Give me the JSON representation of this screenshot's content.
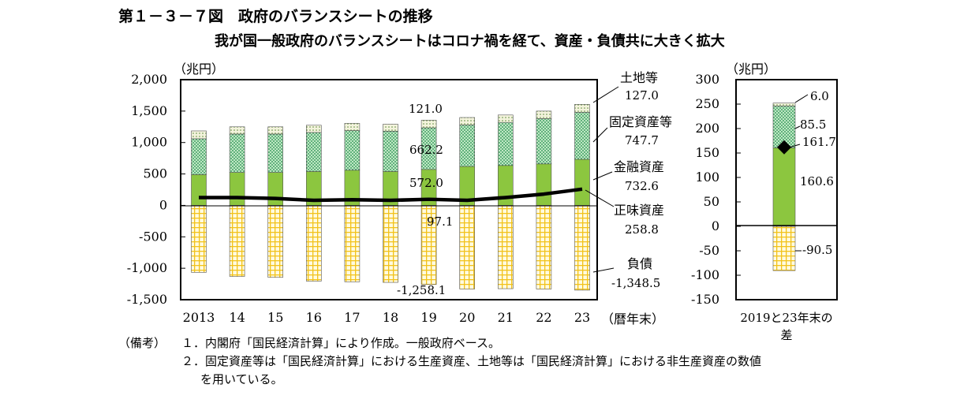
{
  "header": {
    "title": "第１－３－７図　政府のバランスシートの推移",
    "subtitle": "我が国一般政府のバランスシートはコロナ禍を経て、資産・負債共に大きく拡大"
  },
  "notes": {
    "head": "（備考）",
    "items": [
      "１．内閣府「国民経済計算」により作成。一般政府ベース。",
      "２．固定資産等は「国民経済計算」における生産資産、土地等は「国民経済計算」における非生産資産の数値",
      "を用いている。"
    ]
  },
  "colors": {
    "land": "#f3f3dc",
    "fixed": "#bfe8c4",
    "financial": "#8cc63f",
    "liabilities": "#f6d44c",
    "net": "#000000"
  },
  "chart_data": [
    {
      "type": "bar",
      "stacked": true,
      "unit_label": "（兆円）",
      "xlabel": "（暦年末）",
      "ylim": [
        -1500,
        2000
      ],
      "yticks": [
        "2,000",
        "1,500",
        "1,000",
        "500",
        "0",
        "-500",
        "-1,000",
        "-1,500"
      ],
      "categories": [
        "2013",
        "14",
        "15",
        "16",
        "17",
        "18",
        "19",
        "20",
        "21",
        "22",
        "23"
      ],
      "grid": false,
      "legend": "right",
      "series": [
        {
          "name": "金融資産",
          "key": "financial",
          "values": [
            490,
            525,
            525,
            540,
            560,
            540,
            572.0,
            620,
            635,
            660,
            732.6
          ]
        },
        {
          "name": "固定資産等",
          "key": "fixed",
          "values": [
            570,
            610,
            610,
            620,
            630,
            640,
            662.2,
            660,
            685,
            720,
            747.7
          ]
        },
        {
          "name": "土地等",
          "key": "land",
          "values": [
            125,
            115,
            115,
            115,
            115,
            112,
            121.0,
            118,
            118,
            120,
            127.0
          ]
        },
        {
          "name": "負債",
          "key": "liabilities",
          "values": [
            -1065,
            -1130,
            -1145,
            -1205,
            -1215,
            -1225,
            -1258.1,
            -1330,
            -1325,
            -1330,
            -1348.5
          ]
        },
        {
          "name": "正味資産",
          "key": "net",
          "type": "line",
          "values": [
            125,
            125,
            110,
            80,
            90,
            80,
            97.1,
            80,
            125,
            180,
            258.8
          ]
        }
      ],
      "annotations": {
        "year19": {
          "land": "121.0",
          "fixed": "662.2",
          "financial": "572.0",
          "net": "97.1",
          "liabilities": "-1,258.1"
        }
      },
      "legend_labels": [
        {
          "name": "土地等",
          "value": "127.0"
        },
        {
          "name": "固定資産等",
          "value": "747.7"
        },
        {
          "name": "金融資産",
          "value": "732.6"
        },
        {
          "name": "正味資産",
          "value": "258.8"
        },
        {
          "name": "負債",
          "value": "-1,348.5"
        }
      ]
    },
    {
      "type": "bar",
      "stacked": true,
      "unit_label": "（兆円）",
      "xlabel": "2019と23年末の差",
      "ylim": [
        -150,
        300
      ],
      "yticks": [
        "300",
        "250",
        "200",
        "150",
        "100",
        "50",
        "0",
        "-50",
        "-100",
        "-150"
      ],
      "categories": [
        "2019と23年末の差"
      ],
      "series": [
        {
          "name": "金融資産",
          "key": "financial",
          "values": [
            160.6
          ]
        },
        {
          "name": "固定資産等",
          "key": "fixed",
          "values": [
            85.5
          ]
        },
        {
          "name": "土地等",
          "key": "land",
          "values": [
            6.0
          ]
        },
        {
          "name": "負債",
          "key": "liabilities",
          "values": [
            -90.5
          ]
        },
        {
          "name": "正味資産",
          "key": "net",
          "type": "point",
          "values": [
            161.7
          ]
        }
      ],
      "labels": [
        "6.0",
        "85.5",
        "161.7",
        "160.6",
        "-90.5"
      ]
    }
  ]
}
